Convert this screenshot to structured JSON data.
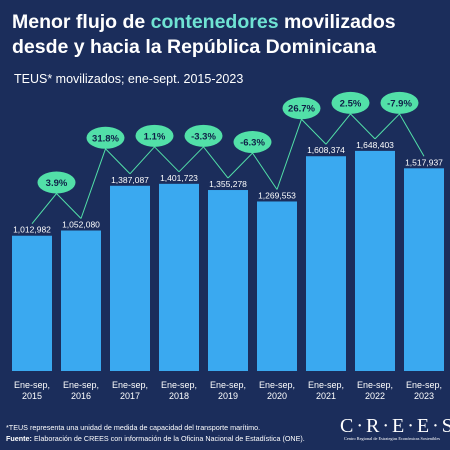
{
  "title": {
    "before": "Menor flujo de ",
    "highlight": "contenedores",
    "after": " movilizados desde y hacia la República Dominicana"
  },
  "subtitle": "TEUS* movilizados; ene-sept. 2015-2023",
  "colors": {
    "background": "#1b2d5b",
    "bar": "#3aa9f0",
    "pill": "#52e0a8",
    "highlight": "#6fe3d3"
  },
  "chart_data": {
    "type": "bar",
    "categories": [
      [
        "Ene-sep,",
        "2015"
      ],
      [
        "Ene-sep,",
        "2016"
      ],
      [
        "Ene-sep,",
        "2017"
      ],
      [
        "Ene-sep,",
        "2018"
      ],
      [
        "Ene-sep,",
        "2019"
      ],
      [
        "Ene-sep,",
        "2020"
      ],
      [
        "Ene-sep,",
        "2021"
      ],
      [
        "Ene-sep,",
        "2022"
      ],
      [
        "Ene-sep,",
        "2023"
      ]
    ],
    "values": [
      1012982,
      1052080,
      1387087,
      1401723,
      1355278,
      1269553,
      1608374,
      1648403,
      1517937
    ],
    "value_labels": [
      "1,012,982",
      "1,052,080",
      "1,387,087",
      "1,401,723",
      "1,355,278",
      "1,269,553",
      "1,608,374",
      "1,648,403",
      "1,517,937"
    ],
    "growth_labels": [
      "3.9%",
      "31.8%",
      "1.1%",
      "-3.3%",
      "-6.3%",
      "26.7%",
      "2.5%",
      "-7.9%"
    ],
    "ylim": [
      0,
      1700000
    ]
  },
  "footnote": {
    "note": "*TEUS representa una unidad de medida de capacidad del transporte marítimo.",
    "source_label": "Fuente:",
    "source_text": " Elaboración de CREES con información de la Oficina Nacional de Estadística (ONE)."
  },
  "logo": {
    "word": "C·R·E·E·S",
    "sub": "Centro Regional de Estrategias Económicas Sostenibles"
  }
}
